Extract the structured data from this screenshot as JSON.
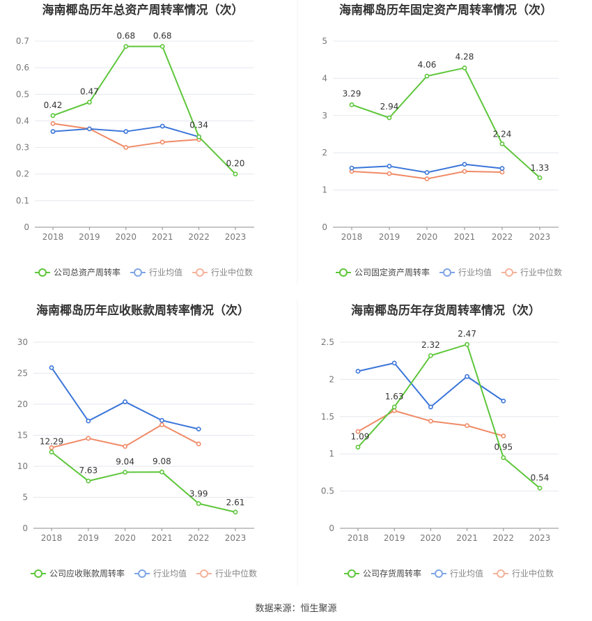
{
  "source": "数据来源：恒生聚源",
  "colors": {
    "company": "#5dc63a",
    "avg": "#3a75d9",
    "median": "#f08a66",
    "grid": "#e4e7ee",
    "axis": "#8c8c8c",
    "tick": "#777777",
    "title": "#333333"
  },
  "chart_data": [
    {
      "type": "line",
      "title": "海南椰岛历年总资产周转率情况（次）",
      "categories": [
        "2018",
        "2019",
        "2020",
        "2021",
        "2022",
        "2023"
      ],
      "ylim": [
        0,
        0.7
      ],
      "yticks": [
        "0",
        "0.1",
        "0.2",
        "0.3",
        "0.4",
        "0.5",
        "0.6",
        "0.7"
      ],
      "legend_position": "bottom",
      "series": [
        {
          "name": "公司总资产周转率",
          "role": "company",
          "values": [
            0.42,
            0.47,
            0.68,
            0.68,
            0.34,
            0.2
          ],
          "labels": [
            "0.42",
            "0.47",
            "0.68",
            "0.68",
            "0.34",
            "0.20"
          ]
        },
        {
          "name": "行业均值",
          "role": "avg",
          "values": [
            0.36,
            0.37,
            0.36,
            0.38,
            0.34,
            null
          ]
        },
        {
          "name": "行业中位数",
          "role": "median",
          "values": [
            0.39,
            0.37,
            0.3,
            0.32,
            0.33,
            null
          ]
        }
      ]
    },
    {
      "type": "line",
      "title": "海南椰岛历年固定资产周转率情况（次）",
      "categories": [
        "2018",
        "2019",
        "2020",
        "2021",
        "2022",
        "2023"
      ],
      "ylim": [
        0,
        5
      ],
      "yticks": [
        "0",
        "1",
        "2",
        "3",
        "4",
        "5"
      ],
      "legend_position": "bottom",
      "series": [
        {
          "name": "公司固定资产周转率",
          "role": "company",
          "values": [
            3.29,
            2.94,
            4.06,
            4.28,
            2.24,
            1.33
          ],
          "labels": [
            "3.29",
            "2.94",
            "4.06",
            "4.28",
            "2.24",
            "1.33"
          ]
        },
        {
          "name": "行业均值",
          "role": "avg",
          "values": [
            1.59,
            1.64,
            1.47,
            1.69,
            1.58,
            null
          ]
        },
        {
          "name": "行业中位数",
          "role": "median",
          "values": [
            1.5,
            1.44,
            1.3,
            1.5,
            1.48,
            null
          ]
        }
      ]
    },
    {
      "type": "line",
      "title": "海南椰岛历年应收账款周转率情况（次）",
      "categories": [
        "2018",
        "2019",
        "2020",
        "2021",
        "2022",
        "2023"
      ],
      "ylim": [
        0,
        30
      ],
      "yticks": [
        "0",
        "5",
        "10",
        "15",
        "20",
        "25",
        "30"
      ],
      "legend_position": "bottom",
      "series": [
        {
          "name": "公司应收账款周转率",
          "role": "company",
          "values": [
            12.29,
            7.63,
            9.04,
            9.08,
            3.99,
            2.61
          ],
          "labels": [
            "12.29",
            "7.63",
            "9.04",
            "9.08",
            "3.99",
            "2.61"
          ]
        },
        {
          "name": "行业均值",
          "role": "avg",
          "values": [
            25.9,
            17.3,
            20.4,
            17.4,
            16.0,
            null
          ]
        },
        {
          "name": "行业中位数",
          "role": "median",
          "values": [
            13.0,
            14.5,
            13.2,
            16.7,
            13.6,
            null
          ]
        }
      ]
    },
    {
      "type": "line",
      "title": "海南椰岛历年存货周转率情况（次）",
      "categories": [
        "2018",
        "2019",
        "2020",
        "2021",
        "2022",
        "2023"
      ],
      "ylim": [
        0,
        2.5
      ],
      "yticks": [
        "0",
        "0.5",
        "1",
        "1.5",
        "2",
        "2.5"
      ],
      "legend_position": "bottom",
      "series": [
        {
          "name": "公司存货周转率",
          "role": "company",
          "values": [
            1.09,
            1.63,
            2.32,
            2.47,
            0.95,
            0.54
          ],
          "labels": [
            "1.09",
            "1.63",
            "2.32",
            "2.47",
            "0.95",
            "0.54"
          ]
        },
        {
          "name": "行业均值",
          "role": "avg",
          "values": [
            2.11,
            2.22,
            1.63,
            2.04,
            1.71,
            null
          ]
        },
        {
          "name": "行业中位数",
          "role": "median",
          "values": [
            1.3,
            1.58,
            1.44,
            1.38,
            1.24,
            null
          ]
        }
      ]
    }
  ]
}
